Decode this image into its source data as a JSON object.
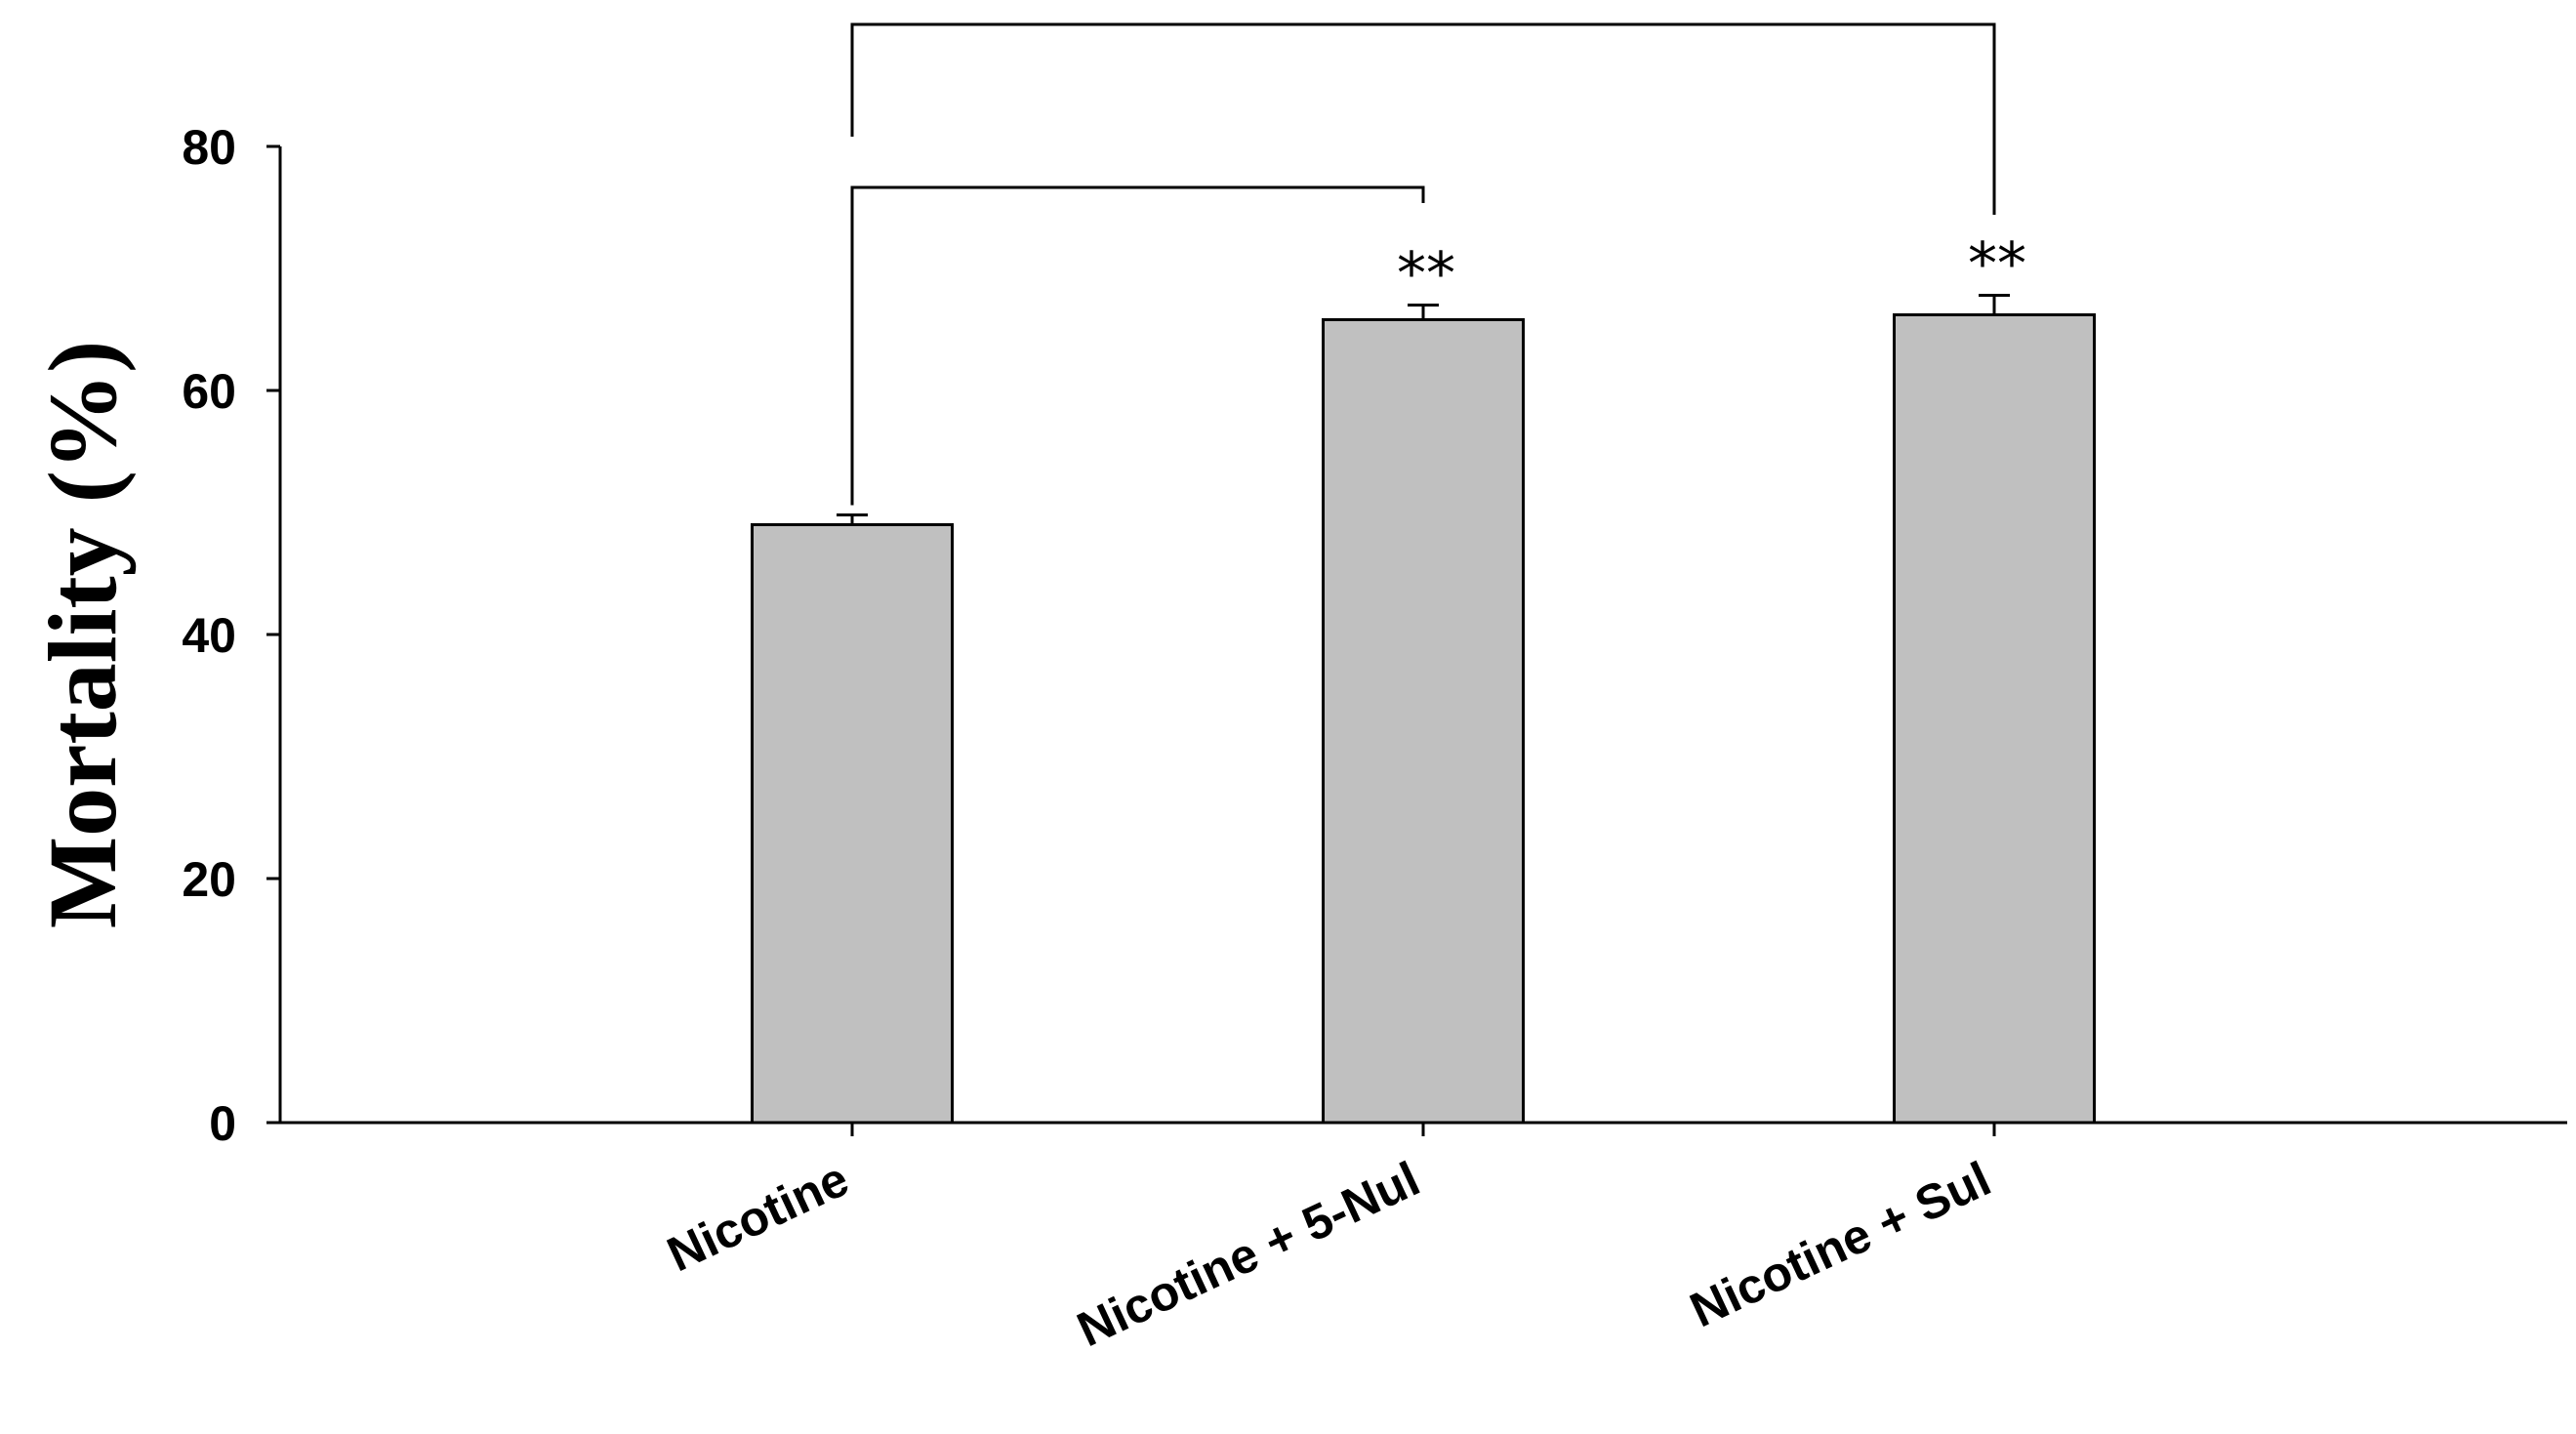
{
  "chart_data": {
    "type": "bar",
    "categories": [
      "Nicotine",
      "Nicotine + 5-Nul",
      "Nicotine + Sul"
    ],
    "values": [
      49,
      65.8,
      66.2
    ],
    "errors": [
      0.8,
      1.2,
      1.6
    ],
    "ylabel": "Mortality (%)",
    "xlabel": "",
    "title": "",
    "ylim": [
      0,
      80
    ],
    "yticks": [
      0,
      20,
      40,
      60,
      80
    ],
    "bar_color": "#c0c0c0",
    "edge_color": "#000000",
    "significance": [
      {
        "from": 0,
        "to": 1,
        "label": "**"
      },
      {
        "from": 0,
        "to": 2,
        "label": "**"
      }
    ],
    "grid": false,
    "legend": "none"
  }
}
